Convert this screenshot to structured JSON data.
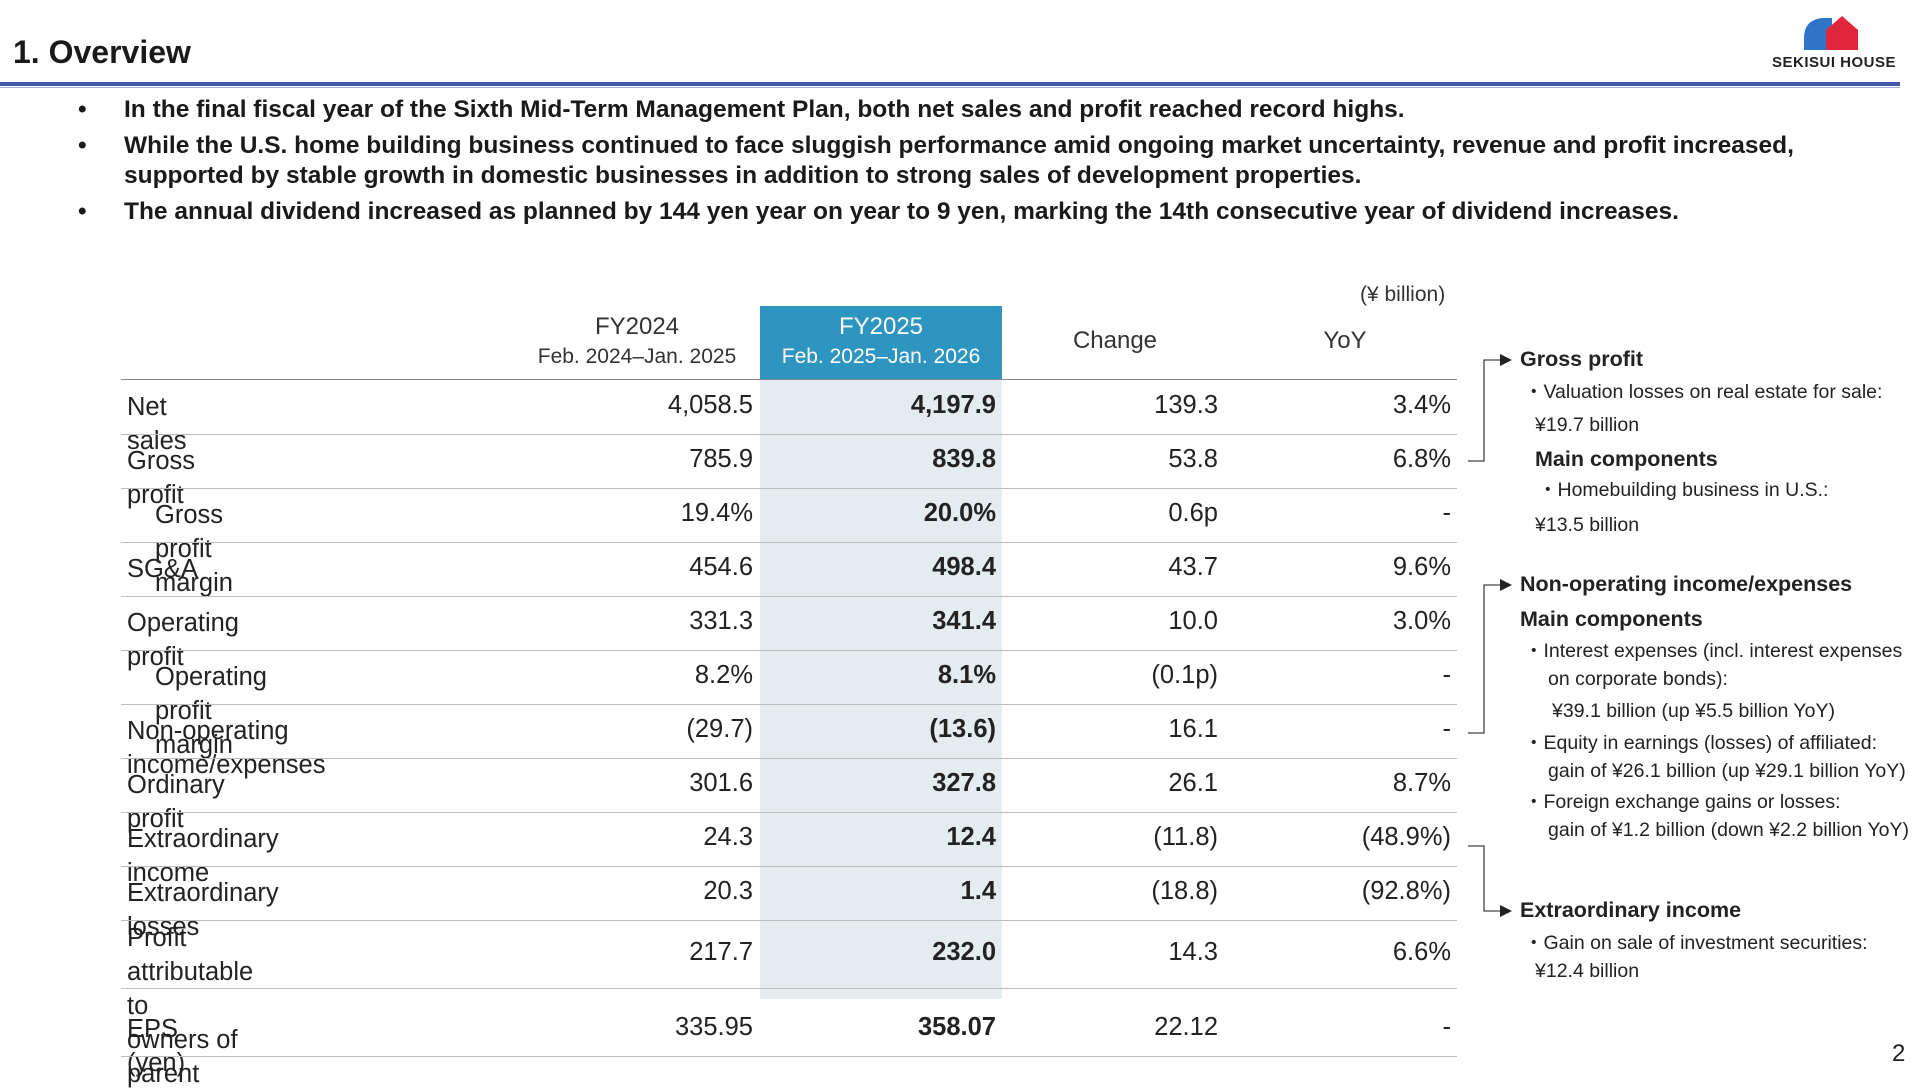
{
  "header": {
    "title": "1. Overview",
    "logo_text": "SEKISUI HOUSE"
  },
  "bullets": [
    "In the final fiscal year of the Sixth Mid-Term Management Plan, both net sales and profit reached record highs.",
    "While the U.S. home building business continued to face sluggish performance amid ongoing market uncertainty, revenue and profit increased, supported by stable growth in domestic businesses in addition to strong sales of development properties.",
    "The annual dividend increased as planned by 144 yen year on year to 9 yen, marking the 14th consecutive year of dividend increases."
  ],
  "bullet_symbol": "•",
  "table": {
    "unit": "(¥ billion)",
    "headers": {
      "fy2024": "FY2024",
      "fy2024_period": "Feb. 2024–Jan. 2025",
      "fy2025": "FY2025",
      "fy2025_period": "Feb. 2025–Jan. 2026",
      "change": "Change",
      "yoy": "YoY"
    },
    "rows": [
      {
        "label": "Net sales",
        "fy2024": "4,058.5",
        "fy2025": "4,197.9",
        "change": "139.3",
        "yoy": "3.4%"
      },
      {
        "label": "Gross profit",
        "fy2024": "785.9",
        "fy2025": "839.8",
        "change": "53.8",
        "yoy": "6.8%"
      },
      {
        "label": "Gross profit margin",
        "fy2024": "19.4%",
        "fy2025": "20.0%",
        "change": "0.6p",
        "yoy": "-"
      },
      {
        "label": "SG&A",
        "fy2024": "454.6",
        "fy2025": "498.4",
        "change": "43.7",
        "yoy": "9.6%"
      },
      {
        "label": "Operating profit",
        "fy2024": "331.3",
        "fy2025": "341.4",
        "change": "10.0",
        "yoy": "3.0%"
      },
      {
        "label": "Operating profit margin",
        "fy2024": "8.2%",
        "fy2025": "8.1%",
        "change": "(0.1p)",
        "yoy": "-"
      },
      {
        "label": "Non-operating income/expenses",
        "fy2024": "(29.7)",
        "fy2025": "(13.6)",
        "change": "16.1",
        "yoy": "-"
      },
      {
        "label": "Ordinary profit",
        "fy2024": "301.6",
        "fy2025": "327.8",
        "change": "26.1",
        "yoy": "8.7%"
      },
      {
        "label": "Extraordinary income",
        "fy2024": "24.3",
        "fy2025": "12.4",
        "change": "(11.8)",
        "yoy": "(48.9%)"
      },
      {
        "label": "Extraordinary losses",
        "fy2024": "20.3",
        "fy2025": "1.4",
        "change": "(18.8)",
        "yoy": "(92.8%)"
      },
      {
        "label_line1": "Profit attributable to",
        "label_line2": "owners of parent",
        "fy2024": "217.7",
        "fy2025": "232.0",
        "change": "14.3",
        "yoy": "6.6%"
      },
      {
        "label": "EPS (yen)",
        "fy2024": "335.95",
        "fy2025": "358.07",
        "change": "22.12",
        "yoy": "-"
      }
    ]
  },
  "notes": {
    "gross_profit": {
      "heading": "Gross profit",
      "line1": "・Valuation losses on real estate for sale:",
      "line2": "¥19.7 billion",
      "sub_heading": "Main components",
      "line3": "・Homebuilding business in U.S.:",
      "line4": "¥13.5 billion"
    },
    "non_operating": {
      "heading": "Non-operating income/expenses",
      "sub_heading": "Main components",
      "line1": "・Interest expenses (incl. interest expenses",
      "line2": "on corporate bonds):",
      "line3": "¥39.1 billion (up ¥5.5 billion YoY)",
      "line4": "・Equity in earnings (losses) of affiliated:",
      "line5": "gain of ¥26.1 billion (up ¥29.1 billion YoY)",
      "line6": "・Foreign exchange gains or losses:",
      "line7": "gain of ¥1.2 billion (down ¥2.2 billion YoY)"
    },
    "extraordinary": {
      "heading": "Extraordinary income",
      "line1": "・Gain on sale of investment securities:",
      "line2": "¥12.4 billion"
    }
  },
  "page_number": "2",
  "colors": {
    "title_rule": "#3c5aa8",
    "highlight_header": "#2e95c0",
    "highlight_column": "#e4ecef",
    "logo_blue": "#2e75c8",
    "logo_red": "#e0263a"
  }
}
